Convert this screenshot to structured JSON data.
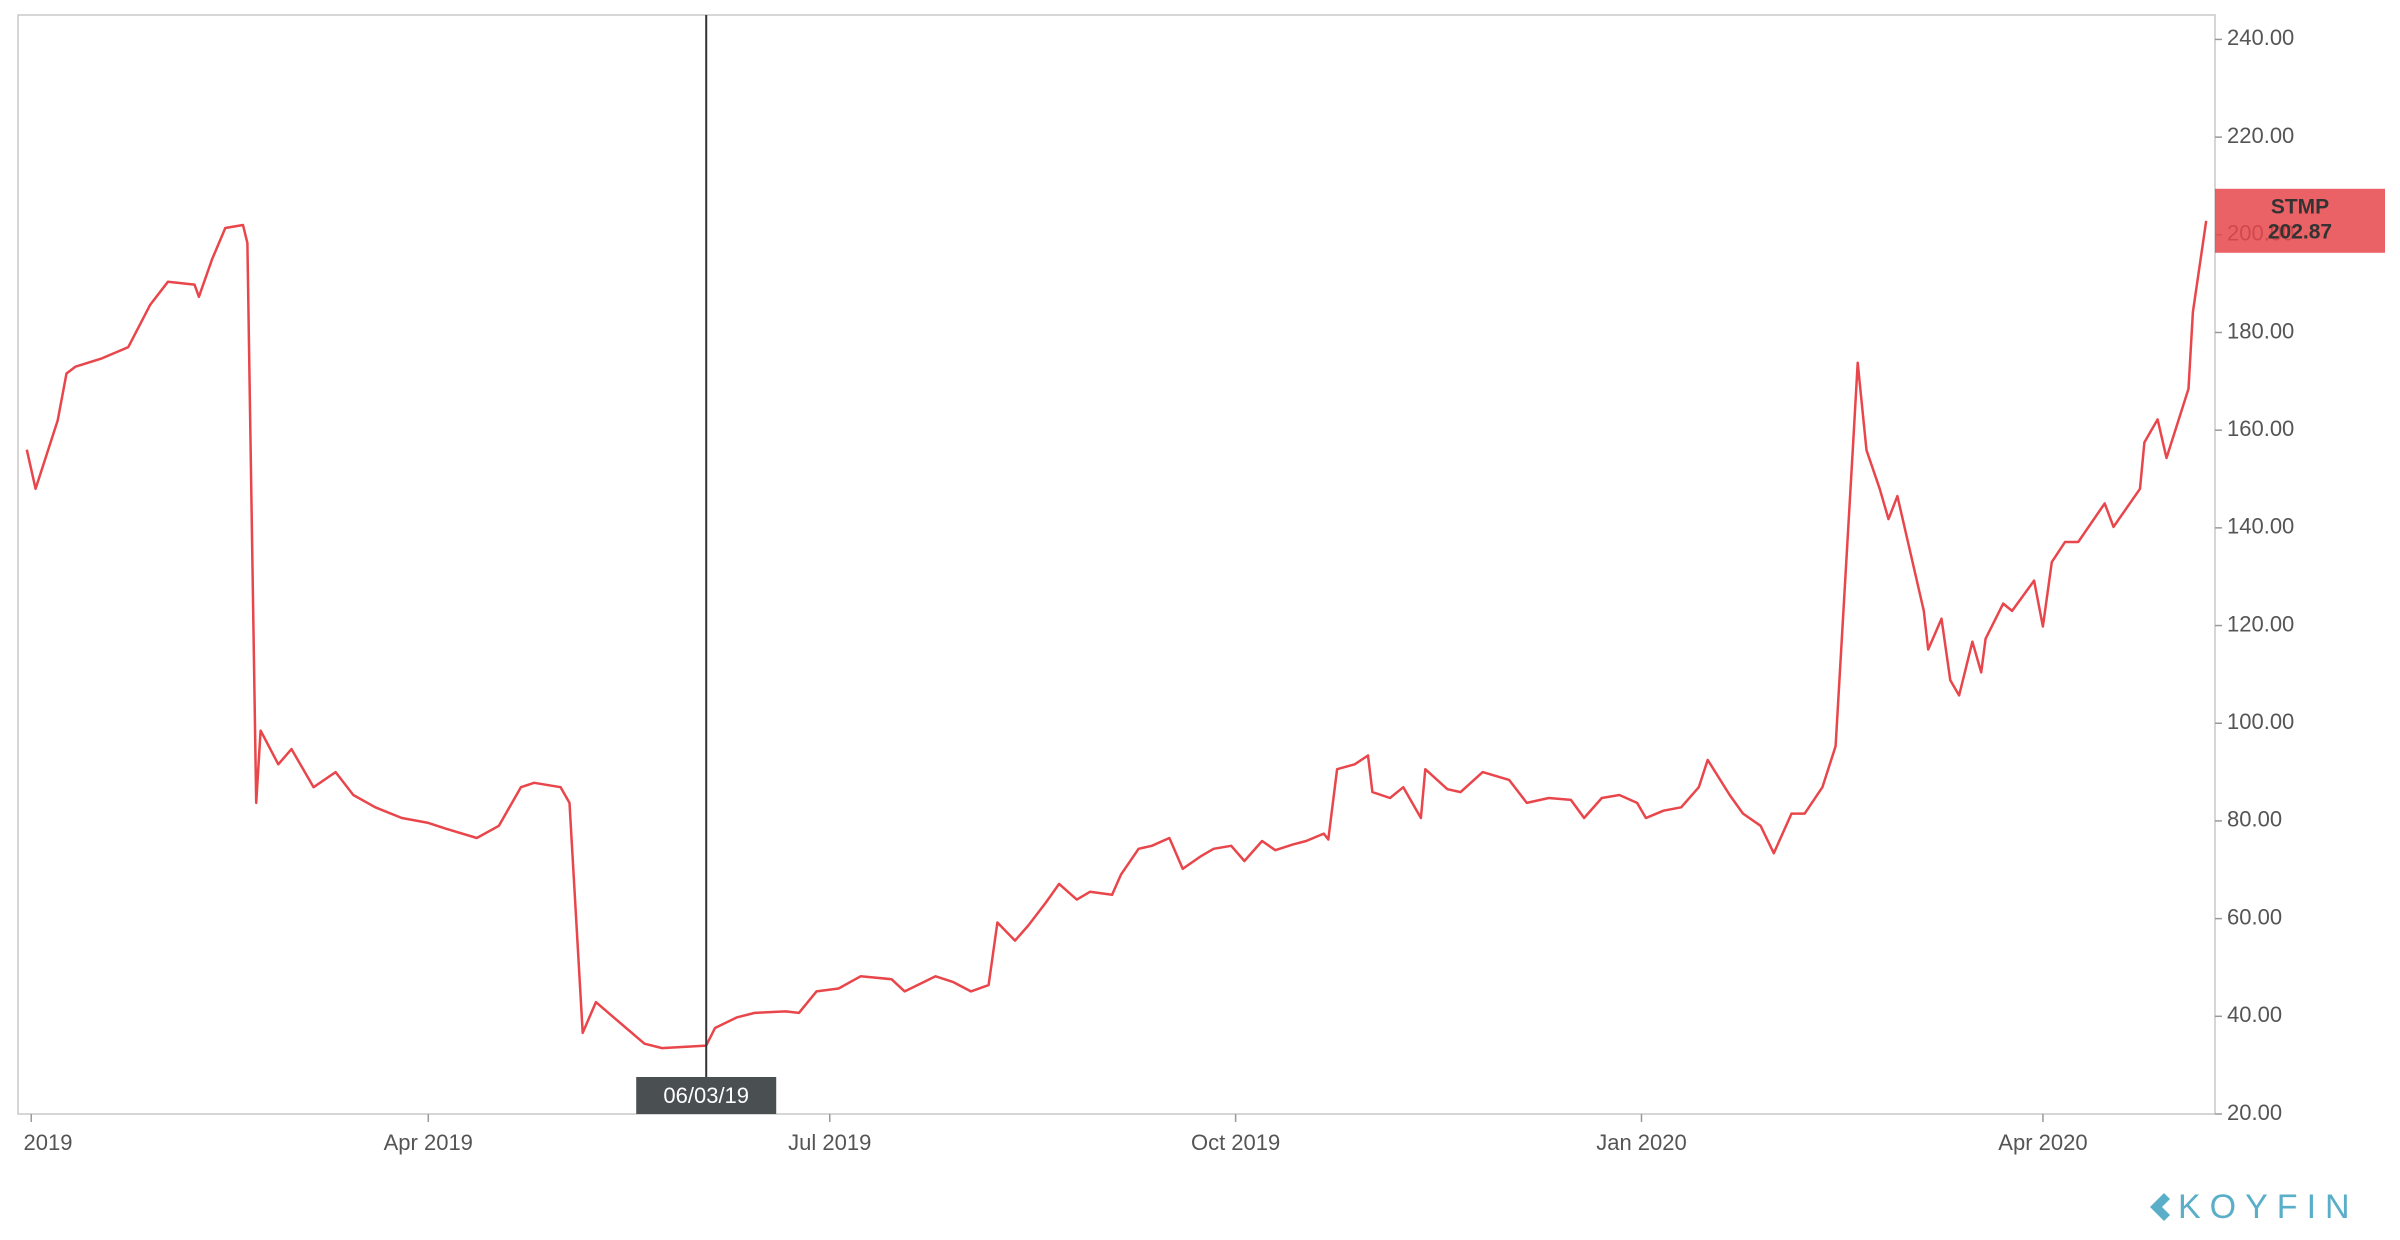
{
  "chart_data": {
    "type": "line",
    "x": [
      "2018-12-31",
      "2019-01-02",
      "2019-01-07",
      "2019-01-09",
      "2019-01-11",
      "2019-01-17",
      "2019-01-23",
      "2019-01-28",
      "2019-02-01",
      "2019-02-07",
      "2019-02-08",
      "2019-02-11",
      "2019-02-14",
      "2019-02-18",
      "2019-02-19",
      "2019-02-21",
      "2019-02-22",
      "2019-02-26",
      "2019-03-01",
      "2019-03-06",
      "2019-03-11",
      "2019-03-15",
      "2019-03-20",
      "2019-03-26",
      "2019-04-01",
      "2019-04-05",
      "2019-04-12",
      "2019-04-17",
      "2019-04-22",
      "2019-04-25",
      "2019-05-01",
      "2019-05-03",
      "2019-05-06",
      "2019-05-09",
      "2019-05-13",
      "2019-05-20",
      "2019-05-24",
      "2019-06-03",
      "2019-06-05",
      "2019-06-10",
      "2019-06-14",
      "2019-06-21",
      "2019-06-24",
      "2019-06-28",
      "2019-07-03",
      "2019-07-08",
      "2019-07-15",
      "2019-07-18",
      "2019-07-25",
      "2019-07-29",
      "2019-08-02",
      "2019-08-06",
      "2019-08-08",
      "2019-08-12",
      "2019-08-15",
      "2019-08-19",
      "2019-08-22",
      "2019-08-26",
      "2019-08-29",
      "2019-09-03",
      "2019-09-05",
      "2019-09-09",
      "2019-09-12",
      "2019-09-16",
      "2019-09-19",
      "2019-09-23",
      "2019-09-26",
      "2019-09-30",
      "2019-10-03",
      "2019-10-07",
      "2019-10-10",
      "2019-10-14",
      "2019-10-17",
      "2019-10-21",
      "2019-10-22",
      "2019-10-24",
      "2019-10-28",
      "2019-10-31",
      "2019-11-01",
      "2019-11-05",
      "2019-11-08",
      "2019-11-12",
      "2019-11-13",
      "2019-11-18",
      "2019-11-21",
      "2019-11-26",
      "2019-12-02",
      "2019-12-06",
      "2019-12-11",
      "2019-12-16",
      "2019-12-19",
      "2019-12-23",
      "2019-12-27",
      "2019-12-31",
      "2020-01-02",
      "2020-01-06",
      "2020-01-10",
      "2020-01-14",
      "2020-01-16",
      "2020-01-21",
      "2020-01-24",
      "2020-01-28",
      "2020-01-31",
      "2020-02-04",
      "2020-02-07",
      "2020-02-11",
      "2020-02-14",
      "2020-02-18",
      "2020-02-19",
      "2020-02-21",
      "2020-02-24",
      "2020-02-26",
      "2020-02-28",
      "2020-03-05",
      "2020-03-06",
      "2020-03-09",
      "2020-03-11",
      "2020-03-13",
      "2020-03-16",
      "2020-03-18",
      "2020-03-19",
      "2020-03-23",
      "2020-03-25",
      "2020-03-30",
      "2020-04-01",
      "2020-04-03",
      "2020-04-06",
      "2020-04-09",
      "2020-04-15",
      "2020-04-17",
      "2020-04-23",
      "2020-04-24",
      "2020-04-27",
      "2020-04-29",
      "2020-05-04",
      "2020-05-05",
      "2020-05-08"
    ],
    "series": [
      {
        "name": "STMP",
        "color": "#e8464b",
        "values": [
          156,
          148,
          162,
          171.6,
          173,
          174.7,
          177,
          185.7,
          190.4,
          189.8,
          187.3,
          195,
          201.4,
          202,
          198.3,
          83.7,
          98.5,
          91.6,
          94.7,
          86.9,
          90,
          85.3,
          82.8,
          80.6,
          79.6,
          78.4,
          76.5,
          79,
          86.9,
          87.8,
          86.9,
          83.7,
          36.6,
          42.9,
          39.8,
          34.4,
          33.5,
          34,
          37.6,
          39.8,
          40.7,
          41,
          40.7,
          45.1,
          45.7,
          48.2,
          47.6,
          45.1,
          48.2,
          47,
          45.1,
          46.4,
          59.2,
          55.5,
          58.6,
          63.3,
          67.1,
          63.9,
          65.5,
          64.9,
          69,
          74.3,
          74.9,
          76.5,
          70.2,
          72.7,
          74.3,
          74.9,
          71.8,
          75.9,
          74,
          75.2,
          75.9,
          77.4,
          76.2,
          90.6,
          91.6,
          93.4,
          85.9,
          84.7,
          86.9,
          80.6,
          90.6,
          86.5,
          85.9,
          90,
          88.4,
          83.7,
          84.7,
          84.3,
          80.6,
          84.7,
          85.3,
          83.7,
          80.6,
          82.1,
          82.8,
          86.9,
          92.5,
          85.3,
          81.5,
          79,
          73.4,
          81.5,
          81.5,
          86.9,
          95.3,
          157.5,
          173.8,
          155.9,
          148,
          141.8,
          146.5,
          123,
          115.1,
          121.4,
          108.8,
          105.7,
          116.7,
          110.4,
          117.3,
          124.5,
          123,
          129.2,
          119.8,
          133,
          137.1,
          137.1,
          145,
          140.2,
          148,
          157.5,
          162.2,
          154.3,
          168.5,
          184.2,
          202.87
        ]
      }
    ],
    "xlim": [
      "2018-12-29",
      "2020-05-10"
    ],
    "xticks": [
      {
        "value": "2019-01-01",
        "label": "2019"
      },
      {
        "value": "2019-04-01",
        "label": "Apr 2019"
      },
      {
        "value": "2019-07-01",
        "label": "Jul 2019"
      },
      {
        "value": "2019-10-01",
        "label": "Oct 2019"
      },
      {
        "value": "2020-01-01",
        "label": "Jan 2020"
      },
      {
        "value": "2020-04-01",
        "label": "Apr 2020"
      }
    ],
    "ylim": [
      20,
      245
    ],
    "yticks": [
      {
        "value": 20,
        "label": "20.00"
      },
      {
        "value": 40,
        "label": "40.00"
      },
      {
        "value": 60,
        "label": "60.00"
      },
      {
        "value": 80,
        "label": "80.00"
      },
      {
        "value": 100,
        "label": "100.00"
      },
      {
        "value": 120,
        "label": "120.00"
      },
      {
        "value": 140,
        "label": "140.00"
      },
      {
        "value": 160,
        "label": "160.00"
      },
      {
        "value": 180,
        "label": "180.00"
      },
      {
        "value": 200,
        "label": "200.00"
      },
      {
        "value": 220,
        "label": "220.00"
      },
      {
        "value": 240,
        "label": "240.00"
      }
    ],
    "crosshair": {
      "x": "2019-06-03",
      "label": "06/03/19"
    },
    "brand": "KOYFIN"
  }
}
